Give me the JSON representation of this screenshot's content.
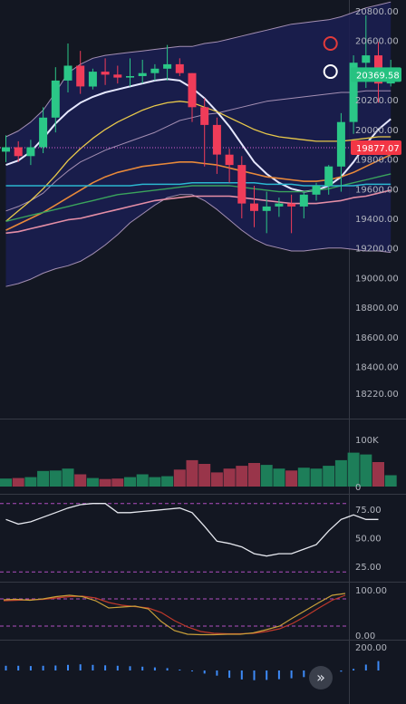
{
  "chart_data": {
    "type": "candlestick",
    "price_axis": {
      "ticks": [
        "20800.00",
        "20600.00",
        "20400.00",
        "20200.00",
        "20000.00",
        "19800.00",
        "19600.00",
        "19400.00",
        "19200.00",
        "19000.00",
        "18800.00",
        "18600.00",
        "18400.00",
        "18220.00"
      ],
      "range": [
        18150,
        20820
      ]
    },
    "price_tags": {
      "current": {
        "label": "20369.58",
        "value": 20369.58,
        "color": "#26c281"
      },
      "reference": {
        "label": "19877.07",
        "value": 19877.07,
        "color": "#f23645"
      }
    },
    "colors": {
      "up": "#2bc787",
      "down": "#f03c59"
    },
    "candles": [
      {
        "o": 19850,
        "h": 19960,
        "l": 19780,
        "c": 19880
      },
      {
        "o": 19880,
        "h": 19920,
        "l": 19780,
        "c": 19820
      },
      {
        "o": 19820,
        "h": 19930,
        "l": 19760,
        "c": 19880
      },
      {
        "o": 19880,
        "h": 20150,
        "l": 19840,
        "c": 20080
      },
      {
        "o": 20080,
        "h": 20420,
        "l": 19980,
        "c": 20330
      },
      {
        "o": 20330,
        "h": 20580,
        "l": 20250,
        "c": 20430
      },
      {
        "o": 20430,
        "h": 20530,
        "l": 20240,
        "c": 20290
      },
      {
        "o": 20290,
        "h": 20410,
        "l": 20270,
        "c": 20390
      },
      {
        "o": 20390,
        "h": 20480,
        "l": 20300,
        "c": 20370
      },
      {
        "o": 20370,
        "h": 20430,
        "l": 20310,
        "c": 20350
      },
      {
        "o": 20350,
        "h": 20480,
        "l": 20290,
        "c": 20360
      },
      {
        "o": 20360,
        "h": 20470,
        "l": 20310,
        "c": 20380
      },
      {
        "o": 20380,
        "h": 20440,
        "l": 20330,
        "c": 20410
      },
      {
        "o": 20410,
        "h": 20570,
        "l": 20330,
        "c": 20440
      },
      {
        "o": 20440,
        "h": 20480,
        "l": 20360,
        "c": 20380
      },
      {
        "o": 20380,
        "h": 20380,
        "l": 20050,
        "c": 20150
      },
      {
        "o": 20150,
        "h": 20210,
        "l": 19750,
        "c": 20030
      },
      {
        "o": 20030,
        "h": 20080,
        "l": 19700,
        "c": 19830
      },
      {
        "o": 19830,
        "h": 19870,
        "l": 19640,
        "c": 19760
      },
      {
        "o": 19760,
        "h": 19820,
        "l": 19400,
        "c": 19500
      },
      {
        "o": 19500,
        "h": 19620,
        "l": 19340,
        "c": 19450
      },
      {
        "o": 19450,
        "h": 19580,
        "l": 19300,
        "c": 19480
      },
      {
        "o": 19480,
        "h": 19540,
        "l": 19410,
        "c": 19500
      },
      {
        "o": 19500,
        "h": 19560,
        "l": 19300,
        "c": 19480
      },
      {
        "o": 19480,
        "h": 19580,
        "l": 19400,
        "c": 19560
      },
      {
        "o": 19560,
        "h": 19640,
        "l": 19520,
        "c": 19620
      },
      {
        "o": 19620,
        "h": 19760,
        "l": 19560,
        "c": 19750
      },
      {
        "o": 19750,
        "h": 20110,
        "l": 19580,
        "c": 20050
      },
      {
        "o": 20050,
        "h": 20500,
        "l": 19970,
        "c": 20450
      },
      {
        "o": 20450,
        "h": 20770,
        "l": 20280,
        "c": 20500
      },
      {
        "o": 20500,
        "h": 20590,
        "l": 20180,
        "c": 20310
      },
      {
        "o": 20310,
        "h": 20470,
        "l": 20290,
        "c": 20370
      }
    ],
    "overlays": {
      "bollinger_upper": {
        "color": "#a48fb3",
        "values": [
          19950,
          19990,
          20050,
          20130,
          20250,
          20380,
          20440,
          20480,
          20500,
          20510,
          20520,
          20530,
          20540,
          20550,
          20560,
          20560,
          20580,
          20590,
          20610,
          20630,
          20650,
          20670,
          20690,
          20710,
          20720,
          20730,
          20740,
          20760,
          20790,
          20820,
          20840,
          20860
        ]
      },
      "bollinger_lower": {
        "color": "#a48fb3",
        "values": [
          18940,
          18960,
          18990,
          19030,
          19060,
          19080,
          19110,
          19160,
          19220,
          19290,
          19370,
          19430,
          19490,
          19540,
          19560,
          19560,
          19520,
          19460,
          19390,
          19320,
          19260,
          19220,
          19200,
          19180,
          19180,
          19190,
          19200,
          19200,
          19190,
          19180,
          19180,
          19170
        ]
      },
      "midline": {
        "color": "#a48fb3",
        "values": [
          19450,
          19480,
          19520,
          19570,
          19650,
          19720,
          19780,
          19820,
          19860,
          19890,
          19920,
          19950,
          19980,
          20020,
          20060,
          20080,
          20100,
          20110,
          20130,
          20150,
          20170,
          20190,
          20200,
          20210,
          20220,
          20230,
          20240,
          20250,
          20250,
          20260,
          20260,
          20260
        ]
      },
      "ma_short": {
        "color": "#e6e8ff",
        "values": [
          19760,
          19790,
          19850,
          19940,
          20040,
          20120,
          20180,
          20220,
          20250,
          20270,
          20290,
          20310,
          20330,
          20340,
          20330,
          20280,
          20210,
          20120,
          20020,
          19900,
          19780,
          19700,
          19640,
          19600,
          19580,
          19590,
          19620,
          19680,
          19780,
          19900,
          20000,
          20070
        ]
      },
      "ma_20": {
        "color": "#e8c84a",
        "values": [
          19380,
          19450,
          19520,
          19600,
          19690,
          19790,
          19870,
          19940,
          20000,
          20050,
          20090,
          20130,
          20160,
          20180,
          20190,
          20180,
          20150,
          20120,
          20080,
          20040,
          20000,
          19970,
          19950,
          19940,
          19930,
          19920,
          19920,
          19920,
          19930,
          19940,
          19950,
          19950
        ]
      },
      "ma_orange": {
        "color": "#e8893a",
        "values": [
          19320,
          19360,
          19400,
          19440,
          19490,
          19540,
          19590,
          19640,
          19680,
          19710,
          19730,
          19750,
          19760,
          19770,
          19780,
          19780,
          19770,
          19760,
          19740,
          19720,
          19700,
          19680,
          19670,
          19660,
          19650,
          19650,
          19660,
          19680,
          19710,
          19750,
          19790,
          19830
        ]
      },
      "ma_green": {
        "color": "#3aa35c",
        "values": [
          19380,
          19400,
          19420,
          19440,
          19460,
          19480,
          19500,
          19520,
          19540,
          19560,
          19570,
          19580,
          19590,
          19600,
          19610,
          19620,
          19620,
          19620,
          19620,
          19610,
          19600,
          19590,
          19580,
          19580,
          19580,
          19590,
          19600,
          19620,
          19640,
          19660,
          19680,
          19700
        ]
      },
      "ma_cyan": {
        "color": "#2bb7d0",
        "values": [
          19620,
          19620,
          19620,
          19620,
          19620,
          19620,
          19620,
          19620,
          19620,
          19620,
          19620,
          19630,
          19630,
          19630,
          19630,
          19640,
          19640,
          19640,
          19640,
          19640,
          19640,
          19630,
          19630,
          19630,
          19620,
          19620,
          19620,
          19620,
          19620,
          19630,
          19630,
          19630
        ]
      },
      "ma_pink": {
        "color": "#e48ea6",
        "values": [
          19300,
          19310,
          19330,
          19350,
          19370,
          19390,
          19400,
          19420,
          19440,
          19460,
          19480,
          19500,
          19520,
          19530,
          19540,
          19550,
          19550,
          19550,
          19550,
          19540,
          19530,
          19520,
          19510,
          19500,
          19500,
          19500,
          19510,
          19520,
          19540,
          19550,
          19570,
          19590
        ]
      }
    },
    "volume": {
      "axis_ticks": [
        "100K",
        "0"
      ],
      "range": [
        0,
        130000
      ],
      "values": [
        17000,
        18000,
        20000,
        33000,
        34000,
        38000,
        26000,
        18000,
        16000,
        17000,
        20000,
        26000,
        20000,
        22000,
        36000,
        56000,
        48000,
        30000,
        38000,
        44000,
        50000,
        46000,
        38000,
        34000,
        40000,
        38000,
        44000,
        56000,
        72000,
        68000,
        52000,
        24000
      ]
    },
    "oscillator_1": {
      "axis_ticks": [
        "75.00",
        "50.00",
        "25.00"
      ],
      "range": [
        10,
        95
      ],
      "levels": [
        80,
        20
      ],
      "values": [
        66,
        62,
        64,
        68,
        72,
        76,
        79,
        80,
        80,
        72,
        72,
        73,
        74,
        75,
        76,
        72,
        60,
        47,
        45,
        42,
        36,
        34,
        36,
        36,
        40,
        44,
        56,
        66,
        70,
        66,
        66
      ]
    },
    "oscillator_2": {
      "axis_ticks": [
        "100.00",
        "0.00"
      ],
      "range": [
        -20,
        115
      ],
      "levels": [
        80,
        20
      ],
      "k": {
        "color": "#c9a03a",
        "values": [
          78,
          79,
          77,
          80,
          85,
          88,
          85,
          76,
          60,
          62,
          64,
          58,
          30,
          10,
          2,
          1,
          1,
          2,
          2,
          5,
          12,
          20,
          38,
          55,
          72,
          88,
          92
        ]
      },
      "d": {
        "color": "#c0392b",
        "values": [
          76,
          77,
          78,
          79,
          82,
          85,
          86,
          82,
          72,
          66,
          63,
          60,
          50,
          32,
          18,
          8,
          4,
          3,
          3,
          4,
          8,
          14,
          26,
          42,
          60,
          77,
          88
        ]
      }
    },
    "histogram": {
      "axis_ticks": [
        "200.00"
      ],
      "range": [
        -150,
        260
      ],
      "color": "#3d8af7",
      "values": [
        40,
        40,
        38,
        40,
        42,
        48,
        52,
        48,
        44,
        40,
        36,
        32,
        26,
        20,
        8,
        -8,
        -26,
        -44,
        -62,
        -76,
        -82,
        -80,
        -74,
        -66,
        -56,
        -40,
        -26,
        -10,
        14,
        50,
        80
      ]
    }
  }
}
